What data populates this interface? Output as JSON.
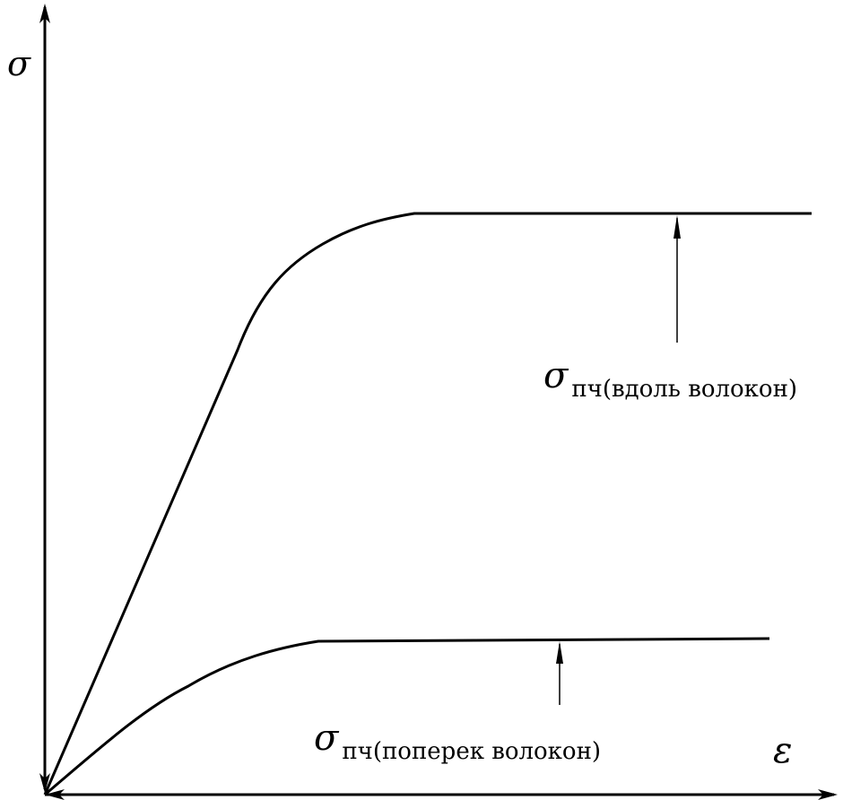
{
  "axes": {
    "y_label": "σ",
    "x_label": "ε"
  },
  "annotations": {
    "along_fibers": {
      "symbol": "σ",
      "subscript": "пч(вдоль волокон)"
    },
    "across_fibers": {
      "symbol": "σ",
      "subscript": "пч(поперек волокон)"
    }
  },
  "colors": {
    "ink": "#000000",
    "background": "#ffffff"
  }
}
